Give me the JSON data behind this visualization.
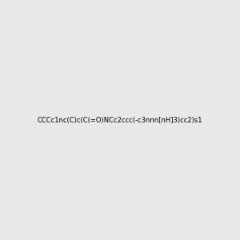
{
  "smiles": "CCCc1nc(C)c(C(=O)NCc2ccc(-c3nnn[nH]3)cc2)s1",
  "title": "",
  "img_size": [
    300,
    300
  ],
  "background_color": "#e8e8e8",
  "atom_colors": {
    "N": "#0000ff",
    "O": "#ff0000",
    "S": "#cccc00",
    "C": "#000000",
    "H_label": "#008080"
  }
}
